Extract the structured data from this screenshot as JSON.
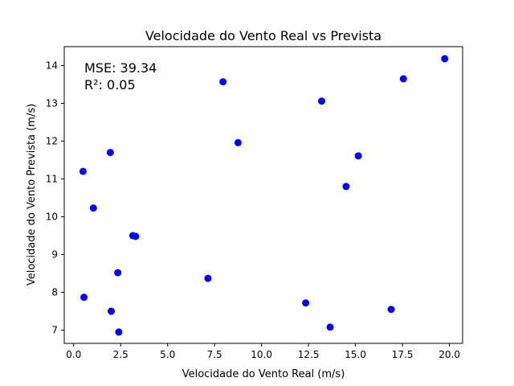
{
  "chart_data": {
    "type": "scatter",
    "title": "Velocidade do Vento Real vs Prevista",
    "xlabel": "Velocidade do Vento Real (m/s)",
    "ylabel": "Velocidade do Vento Prevista (m/s)",
    "xlim": [
      -0.5,
      20.7
    ],
    "ylim": [
      6.65,
      14.5
    ],
    "xticks": [
      0.0,
      2.5,
      5.0,
      7.5,
      10.0,
      12.5,
      15.0,
      17.5,
      20.0
    ],
    "xtick_labels": [
      "0.0",
      "2.5",
      "5.0",
      "7.5",
      "10.0",
      "12.5",
      "15.0",
      "17.5",
      "20.0"
    ],
    "yticks": [
      7,
      8,
      9,
      10,
      11,
      12,
      13,
      14
    ],
    "ytick_labels": [
      "7",
      "8",
      "9",
      "10",
      "11",
      "12",
      "13",
      "14"
    ],
    "grid": false,
    "annotations": [
      "MSE: 39.34",
      "R²: 0.05"
    ],
    "series": [
      {
        "color": "#0000ff",
        "points": [
          {
            "x": 0.5,
            "y": 11.2
          },
          {
            "x": 0.55,
            "y": 7.87
          },
          {
            "x": 1.05,
            "y": 10.23
          },
          {
            "x": 1.95,
            "y": 11.7
          },
          {
            "x": 2.0,
            "y": 7.5
          },
          {
            "x": 2.35,
            "y": 8.52
          },
          {
            "x": 2.4,
            "y": 6.95
          },
          {
            "x": 3.15,
            "y": 9.5
          },
          {
            "x": 3.3,
            "y": 9.48
          },
          {
            "x": 7.15,
            "y": 8.37
          },
          {
            "x": 7.95,
            "y": 13.57
          },
          {
            "x": 8.75,
            "y": 11.96
          },
          {
            "x": 12.35,
            "y": 7.72
          },
          {
            "x": 13.2,
            "y": 13.06
          },
          {
            "x": 13.65,
            "y": 7.08
          },
          {
            "x": 14.5,
            "y": 10.8
          },
          {
            "x": 15.15,
            "y": 11.61
          },
          {
            "x": 16.9,
            "y": 7.55
          },
          {
            "x": 17.55,
            "y": 13.65
          },
          {
            "x": 19.75,
            "y": 14.18
          }
        ]
      }
    ]
  }
}
